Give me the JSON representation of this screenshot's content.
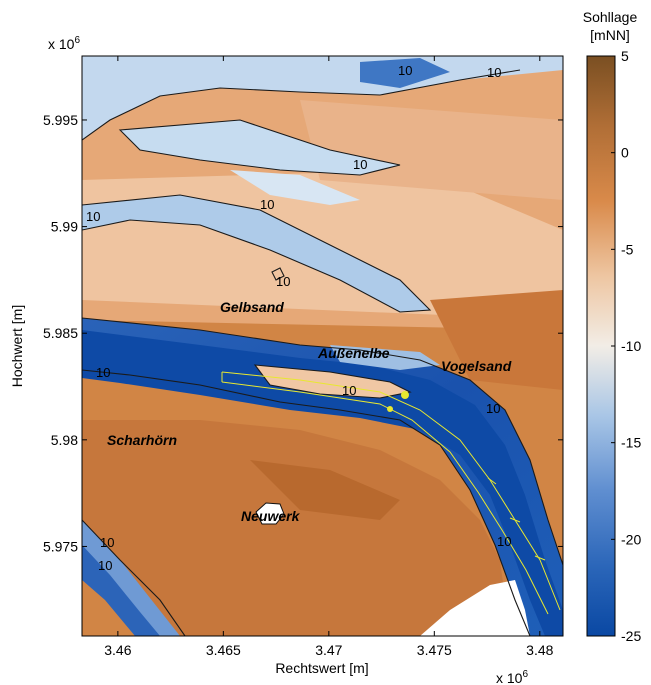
{
  "map": {
    "x_axis_label": "Rechtswert [m]",
    "y_axis_label": "Hochwert [m]",
    "x_exponent_base": "x 10",
    "x_exponent_power": "6",
    "y_exponent_base": "x 10",
    "y_exponent_power": "6",
    "x_ticks": [
      "3.46",
      "3.465",
      "3.47",
      "3.475",
      "3.48"
    ],
    "y_ticks": [
      "5.995",
      "5.99",
      "5.985",
      "5.98",
      "5.975"
    ],
    "x_range": [
      3.4583,
      3.4811
    ],
    "y_range": [
      5.9708,
      5.998
    ],
    "contour_label": "10",
    "place_names": [
      "Gelbsand",
      "Außenelbe",
      "Vogelsand",
      "Scharhörn",
      "Neuwerk"
    ]
  },
  "colorbar": {
    "title_line1": "Sohllage",
    "title_line2": "[mNN]",
    "ticks": [
      "5",
      "0",
      "-5",
      "-10",
      "-15",
      "-20",
      "-25"
    ],
    "range": [
      -25,
      5
    ],
    "colors": {
      "high": "#7a4f22",
      "mid_warm": "#d98a4a",
      "neutral": "#f2ede6",
      "mid_cool": "#5f8ed0",
      "low": "#0a48a3"
    }
  },
  "colors": {
    "land_brown": "#c97b3e",
    "shallow_peach": "#f0c9a8",
    "channel_light": "#a9c6e6",
    "channel_deep": "#1d59b3",
    "contour_line": "#1a1a1a",
    "marker": "#e8e830"
  }
}
